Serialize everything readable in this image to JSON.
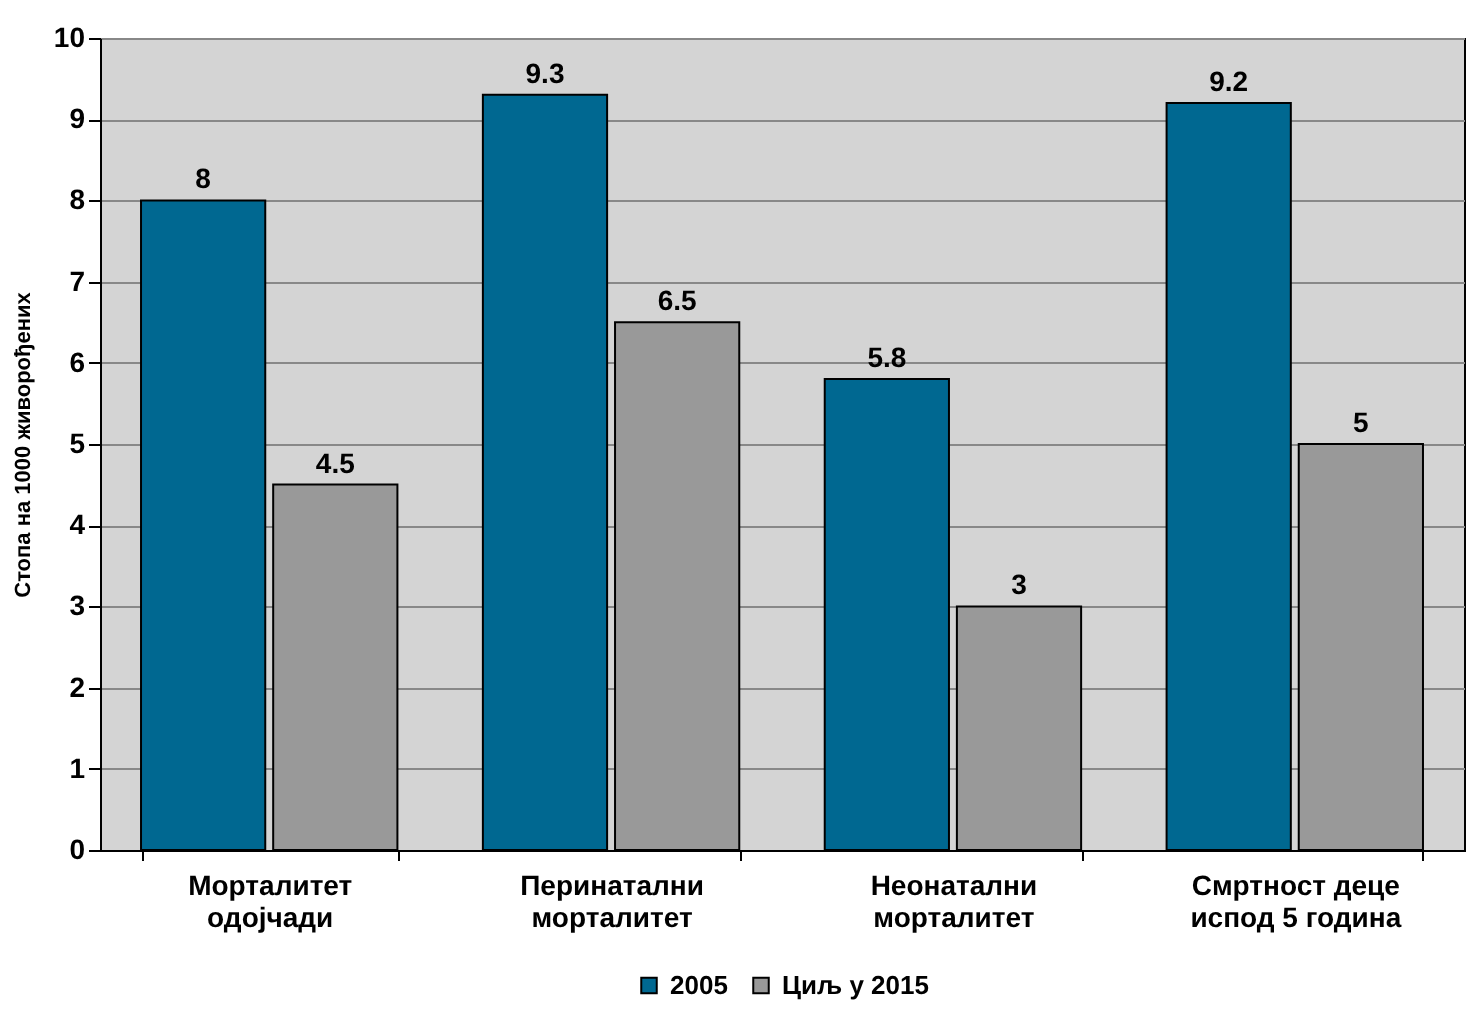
{
  "chart_data": {
    "type": "bar",
    "ylabel": "Стопа на 1000 живорођених",
    "categories": [
      "Морталитет\nодојчади",
      "Перинатални\nморталитет",
      "Неонатални\nморталитет",
      "Смртност деце\nиспод 5 година"
    ],
    "series": [
      {
        "name": "2005",
        "color": "#006891",
        "values": [
          8,
          9.3,
          5.8,
          9.2
        ]
      },
      {
        "name": "Циљ у 2015",
        "color": "#999999",
        "values": [
          4.5,
          6.5,
          3,
          5
        ]
      }
    ],
    "ylim": [
      0,
      10
    ],
    "yticks": [
      0,
      1,
      2,
      3,
      4,
      5,
      6,
      7,
      8,
      9,
      10
    ],
    "grid": "y",
    "legend": "bottom",
    "data_labels": true
  }
}
